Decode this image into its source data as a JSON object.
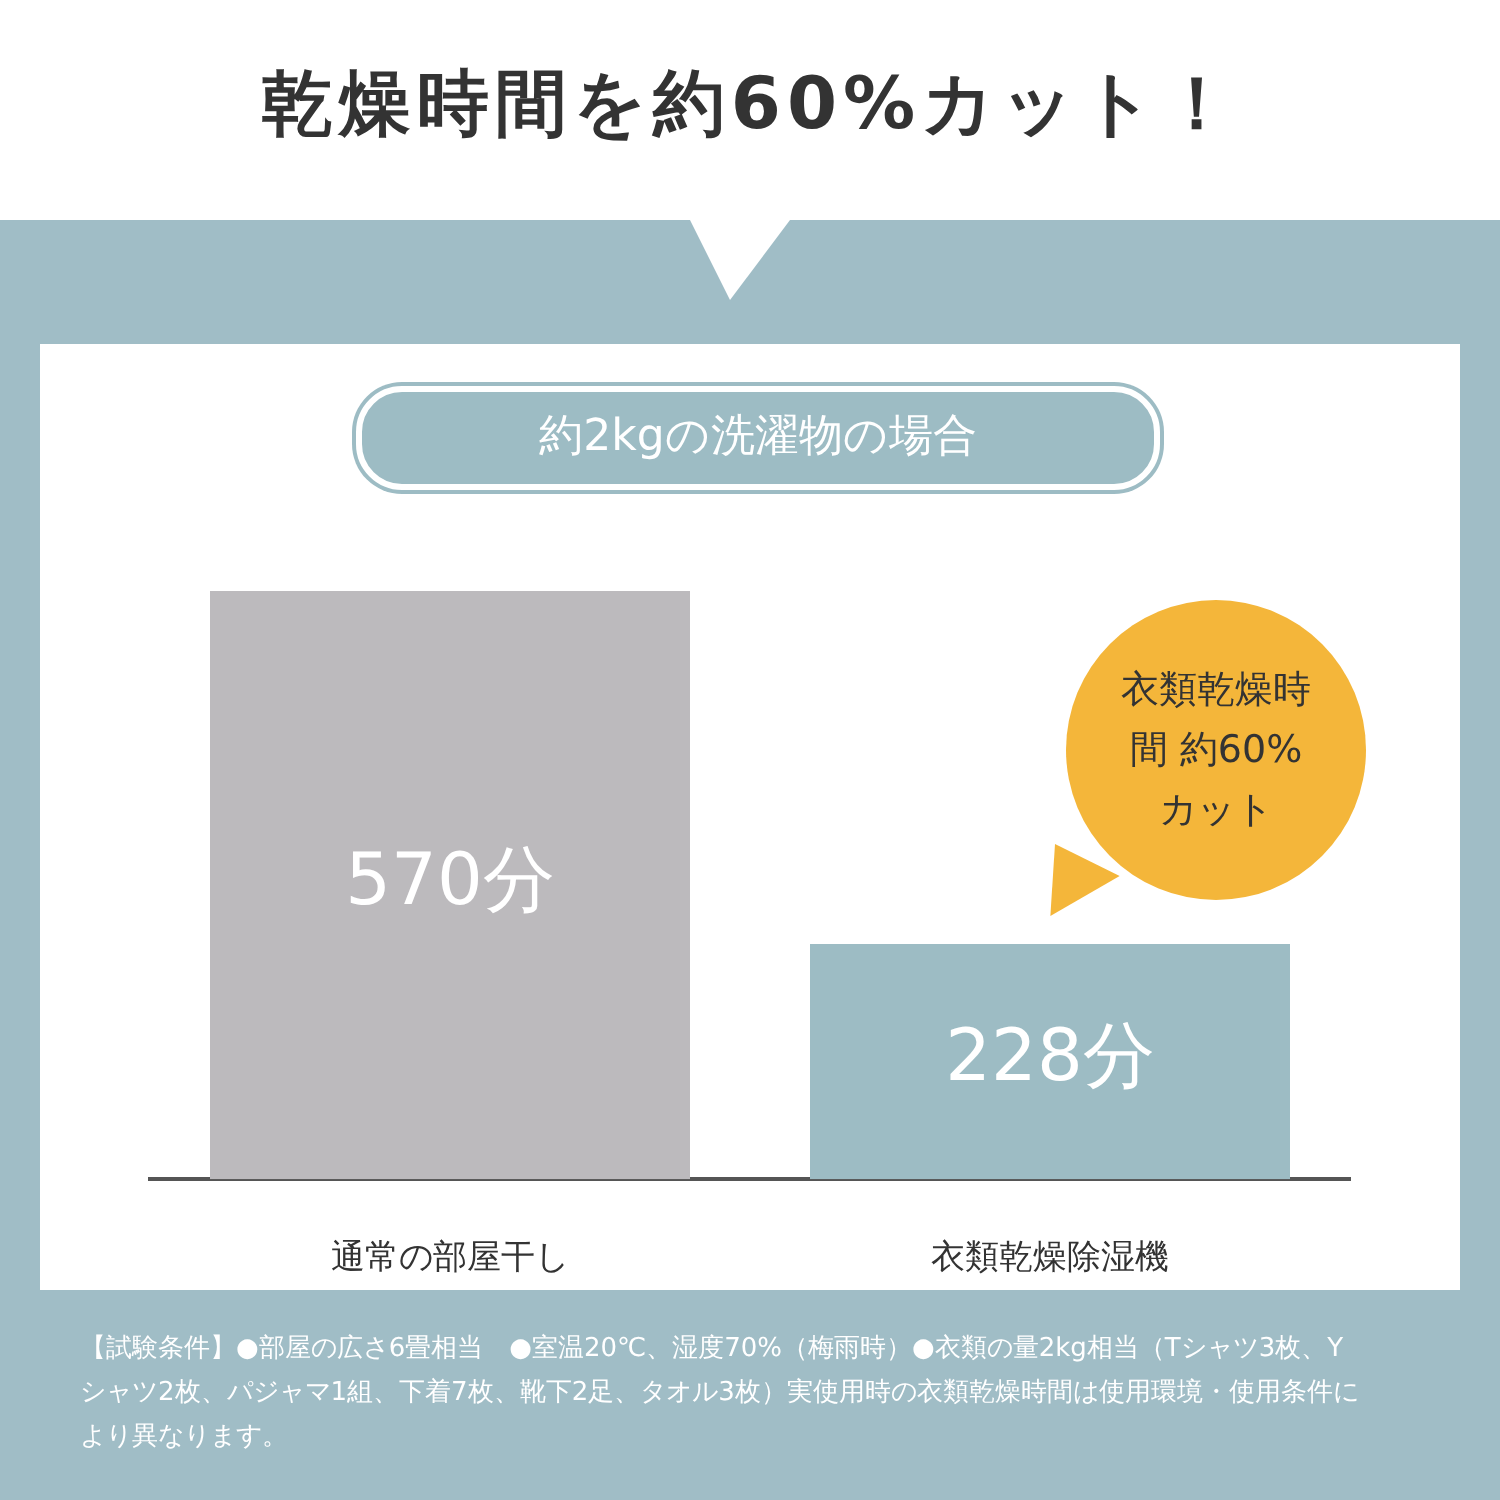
{
  "chart_data": {
    "type": "bar",
    "title": "乾燥時間を約60%カット！",
    "subtitle": "約2kgの洗濯物の場合",
    "categories": [
      "通常の部屋干し",
      "衣類乾燥除湿機"
    ],
    "values": [
      570,
      228
    ],
    "colors": [
      "#bcbabd",
      "#9dbcc4"
    ],
    "value_labels": [
      "570分",
      "228分"
    ],
    "annotations": [
      "衣類乾燥時間 約60% カット",
      "【試験条件】●部屋の広さ6畳相当　●室温20℃、湿度70%（梅雨時）●衣類の量2kg相当（Tシャツ3枚、Yシャツ2枚、パジャマ1組、下着7枚、靴下2足、タオル3枚）実使用時の衣類乾燥時間は使用環境・使用条件により異なります。"
    ],
    "grid": false,
    "legend": false
  }
}
